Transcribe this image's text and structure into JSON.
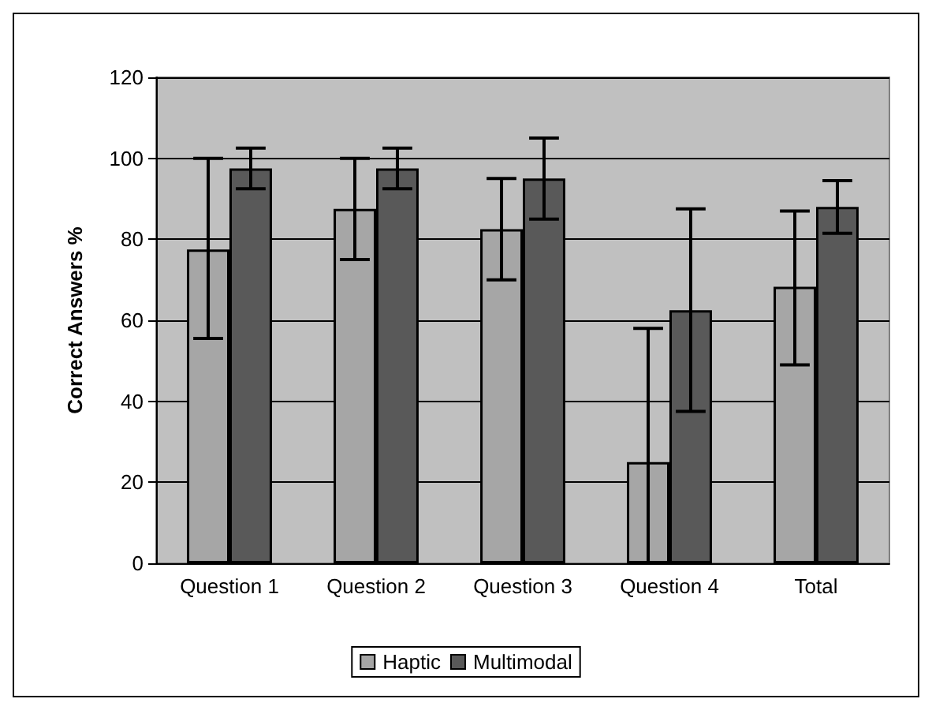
{
  "chart_data": {
    "type": "bar",
    "ylabel": "Correct Answers %",
    "categories": [
      "Question 1",
      "Question 2",
      "Question 3",
      "Question 4",
      "Total"
    ],
    "series": [
      {
        "name": "Haptic",
        "color": "#a6a6a6",
        "values": [
          77.5,
          87.5,
          82.5,
          25,
          68.3
        ],
        "errors": [
          [
            55.5,
            100
          ],
          [
            75,
            100
          ],
          [
            70,
            95
          ],
          [
            0,
            58
          ],
          [
            49,
            87
          ]
        ]
      },
      {
        "name": "Multimodal",
        "color": "#595959",
        "values": [
          97.5,
          97.5,
          95,
          62.5,
          88
        ],
        "errors": [
          [
            92.5,
            102.5
          ],
          [
            92.5,
            102.5
          ],
          [
            85,
            105
          ],
          [
            37.5,
            87.5
          ],
          [
            81.5,
            94.5
          ]
        ]
      }
    ],
    "ylim": [
      0,
      120
    ],
    "yticks": [
      0,
      20,
      40,
      60,
      80,
      100,
      120
    ],
    "grid": "y",
    "legend": "bottom"
  }
}
